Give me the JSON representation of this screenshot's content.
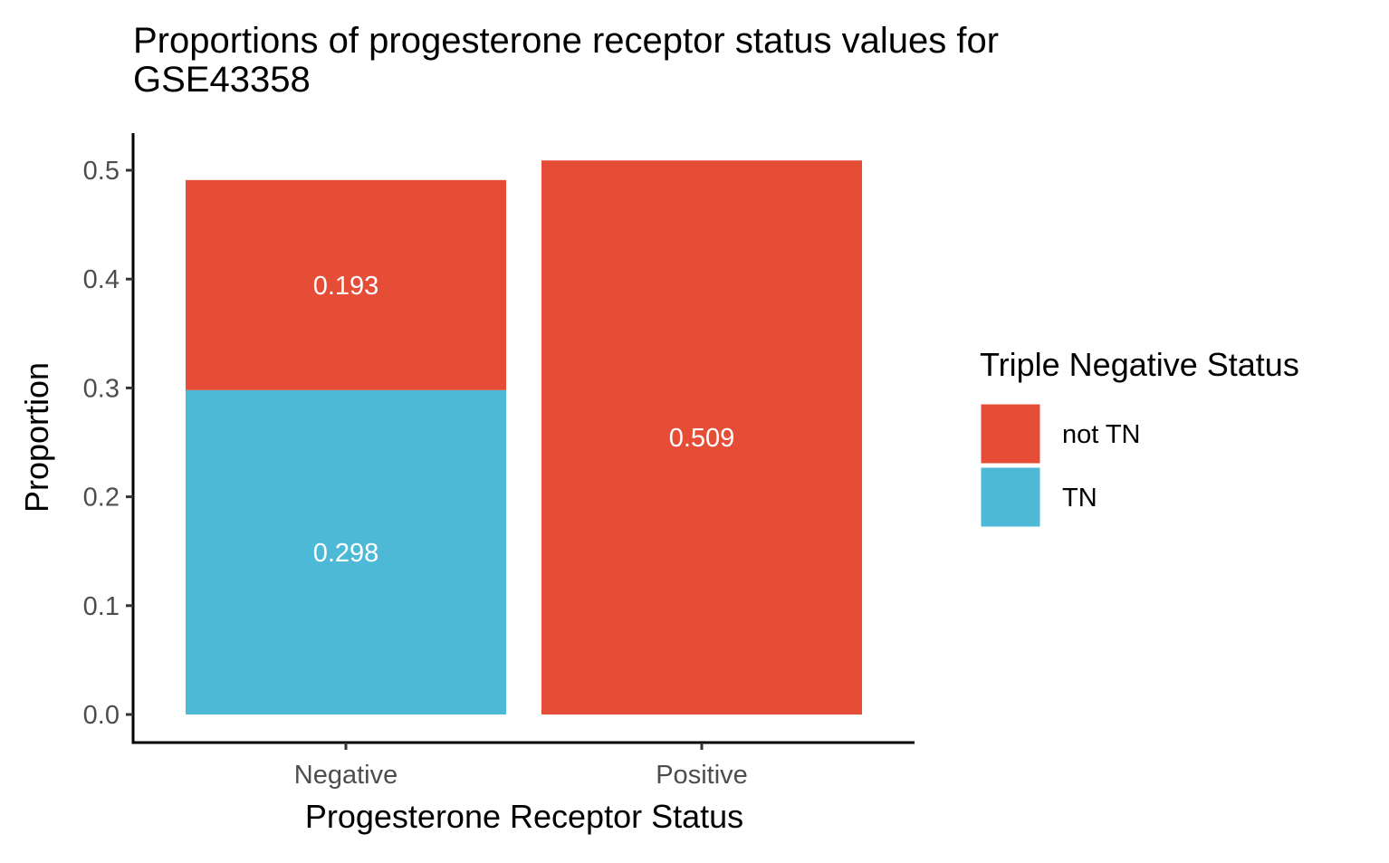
{
  "chart_data": {
    "type": "bar",
    "stacked": true,
    "title_lines": [
      "Proportions of progesterone receptor status values for",
      "GSE43358"
    ],
    "xlabel": "Progesterone Receptor Status",
    "ylabel": "Proportion",
    "categories": [
      "Negative",
      "Positive"
    ],
    "series": [
      {
        "name": "TN",
        "color": "#4EB9D6",
        "values": [
          0.298,
          0
        ]
      },
      {
        "name": "not TN",
        "color": "#E54D37",
        "values": [
          0.193,
          0.509
        ]
      }
    ],
    "data_labels": [
      {
        "category": "Negative",
        "series": "TN",
        "text": "0.298"
      },
      {
        "category": "Negative",
        "series": "not TN",
        "text": "0.193"
      },
      {
        "category": "Positive",
        "series": "not TN",
        "text": "0.509"
      }
    ],
    "y_ticks": [
      "0.0",
      "0.1",
      "0.2",
      "0.3",
      "0.4",
      "0.5"
    ],
    "ylim": [
      0,
      0.53
    ],
    "grid": false,
    "legend": {
      "title": "Triple Negative Status",
      "placement": "right",
      "entries": [
        {
          "label": "not TN",
          "color": "#E54D37"
        },
        {
          "label": "TN",
          "color": "#4EB9D6"
        }
      ]
    }
  }
}
